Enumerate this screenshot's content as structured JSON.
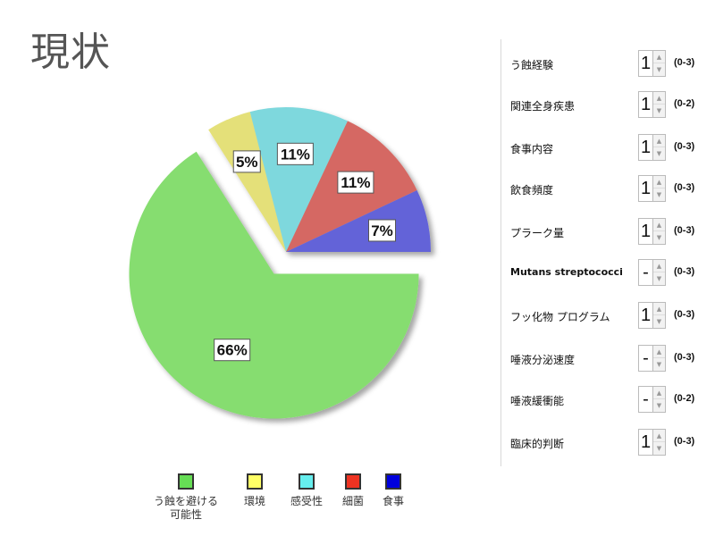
{
  "page_title": "現状",
  "chart_data": {
    "type": "pie",
    "title": "",
    "start_angle_deg": 0,
    "exploded_index": 0,
    "slices": [
      {
        "name": "う蝕を避ける\n可能性",
        "value": 66,
        "label": "66%",
        "color": "#86dd6f"
      },
      {
        "name": "環境",
        "value": 5,
        "label": "5%",
        "color": "#e4e079"
      },
      {
        "name": "感受性",
        "value": 11,
        "label": "11%",
        "color": "#7ed8dd"
      },
      {
        "name": "細菌",
        "value": 11,
        "label": "11%",
        "color": "#d56863"
      },
      {
        "name": "食事",
        "value": 7,
        "label": "7%",
        "color": "#6464d8"
      }
    ],
    "legend_position": "bottom",
    "legend_colors": [
      "#66dd55",
      "#ffff66",
      "#66eeee",
      "#ee3322",
      "#0000dd"
    ]
  },
  "form": {
    "rows": [
      {
        "label": "う蝕経験",
        "value": "1",
        "range": "(0-3)"
      },
      {
        "label": "関連全身疾患",
        "value": "1",
        "range": "(0-2)"
      },
      {
        "label": "食事内容",
        "value": "1",
        "range": "(0-3)"
      },
      {
        "label": "飲食頻度",
        "value": "1",
        "range": "(0-3)"
      },
      {
        "label": "プラーク量",
        "value": "1",
        "range": "(0-3)"
      },
      {
        "label": "Mutans streptococci",
        "value": "-",
        "range": "(0-3)"
      },
      {
        "label": "フッ化物 プログラム",
        "value": "1",
        "range": "(0-3)"
      },
      {
        "label": "唾液分泌速度",
        "value": "-",
        "range": "(0-3)"
      },
      {
        "label": "唾液緩衝能",
        "value": "-",
        "range": "(0-2)"
      },
      {
        "label": "臨床的判断",
        "value": "1",
        "range": "(0-3)"
      }
    ],
    "stepper_up_icon": "up-arrow-icon",
    "stepper_down_icon": "down-arrow-icon"
  }
}
